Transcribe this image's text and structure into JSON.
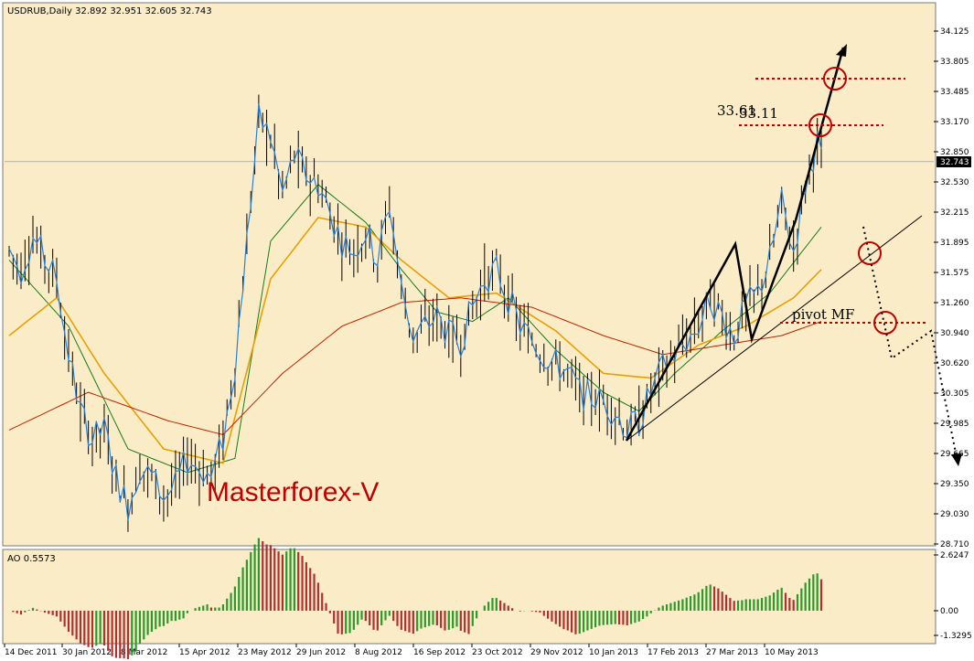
{
  "chart_data": [
    {
      "type": "candlestick",
      "symbol_header": "USDRUB,Daily  32.892 32.951 32.605 32.743",
      "current_price_label": "32.743",
      "current_price": 32.743,
      "ylim": [
        28.71,
        34.3
      ],
      "y_ticks": [
        "34.125",
        "33.805",
        "33.485",
        "33.170",
        "32.850",
        "32.530",
        "32.215",
        "31.895",
        "31.575",
        "31.260",
        "30.940",
        "30.620",
        "30.305",
        "29.985",
        "29.665",
        "29.350",
        "29.030",
        "28.710"
      ],
      "x_ticks": [
        "14 Dec 2011",
        "30 Jan 2012",
        "8 Mar 2012",
        "15 Apr 2012",
        "23 May 2012",
        "29 Jun 2012",
        "8 Aug 2012",
        "16 Sep 2012",
        "23 Oct 2012",
        "29 Nov 2012",
        "10 Jan 2013",
        "17 Feb 2013",
        "27 Mar 2013",
        "10 May 2013"
      ],
      "price_path": [
        [
          0,
          31.8
        ],
        [
          3,
          31.6
        ],
        [
          6,
          31.95
        ],
        [
          9,
          31.7
        ],
        [
          12,
          31.5
        ],
        [
          15,
          30.7
        ],
        [
          18,
          30.1
        ],
        [
          21,
          29.8
        ],
        [
          24,
          29.9
        ],
        [
          27,
          29.4
        ],
        [
          30,
          29.1
        ],
        [
          33,
          29.5
        ],
        [
          36,
          29.4
        ],
        [
          39,
          29.2
        ],
        [
          42,
          29.3
        ],
        [
          45,
          29.6
        ],
        [
          48,
          29.5
        ],
        [
          51,
          29.4
        ],
        [
          54,
          29.8
        ],
        [
          57,
          30.6
        ],
        [
          60,
          31.9
        ],
        [
          63,
          33.2
        ],
        [
          66,
          33.0
        ],
        [
          69,
          32.4
        ],
        [
          72,
          32.8
        ],
        [
          75,
          32.6
        ],
        [
          78,
          32.5
        ],
        [
          81,
          32.2
        ],
        [
          84,
          31.9
        ],
        [
          87,
          31.8
        ],
        [
          90,
          32.0
        ],
        [
          93,
          31.7
        ],
        [
          96,
          32.3
        ],
        [
          99,
          31.4
        ],
        [
          102,
          30.9
        ],
        [
          105,
          31.0
        ],
        [
          108,
          31.1
        ],
        [
          111,
          30.9
        ],
        [
          114,
          30.85
        ],
        [
          117,
          31.2
        ],
        [
          120,
          31.5
        ],
        [
          123,
          31.6
        ],
        [
          126,
          31.3
        ],
        [
          129,
          31.0
        ],
        [
          132,
          30.85
        ],
        [
          135,
          30.7
        ],
        [
          138,
          30.6
        ],
        [
          141,
          30.5
        ],
        [
          144,
          30.3
        ],
        [
          147,
          30.25
        ],
        [
          150,
          30.2
        ],
        [
          153,
          30.1
        ],
        [
          156,
          29.9
        ],
        [
          159,
          30.0
        ],
        [
          162,
          30.3
        ],
        [
          165,
          30.55
        ],
        [
          168,
          30.7
        ],
        [
          171,
          30.85
        ],
        [
          174,
          31.0
        ],
        [
          177,
          31.3
        ],
        [
          180,
          31.1
        ],
        [
          183,
          30.9
        ],
        [
          186,
          31.2
        ],
        [
          189,
          31.35
        ],
        [
          192,
          31.7
        ],
        [
          195,
          32.3
        ],
        [
          198,
          31.8
        ],
        [
          201,
          32.5
        ],
        [
          204,
          32.95
        ],
        [
          205,
          32.743
        ]
      ],
      "price_x_range": [
        0,
        205
      ],
      "moving_averages": [
        {
          "color": "#1a7a1a",
          "path": [
            [
              0,
              31.7
            ],
            [
              15,
              31.0
            ],
            [
              30,
              29.7
            ],
            [
              45,
              29.45
            ],
            [
              57,
              29.6
            ],
            [
              66,
              31.9
            ],
            [
              78,
              32.5
            ],
            [
              90,
              32.1
            ],
            [
              99,
              31.6
            ],
            [
              108,
              31.15
            ],
            [
              117,
              31.05
            ],
            [
              126,
              31.3
            ],
            [
              138,
              30.75
            ],
            [
              150,
              30.3
            ],
            [
              159,
              30.1
            ],
            [
              168,
              30.5
            ],
            [
              180,
              30.95
            ],
            [
              192,
              31.35
            ],
            [
              205,
              32.05
            ]
          ]
        },
        {
          "color": "#e8a000",
          "path": [
            [
              0,
              30.9
            ],
            [
              12,
              31.3
            ],
            [
              24,
              30.5
            ],
            [
              39,
              29.7
            ],
            [
              54,
              29.55
            ],
            [
              66,
              31.5
            ],
            [
              78,
              32.15
            ],
            [
              90,
              32.05
            ],
            [
              99,
              31.7
            ],
            [
              111,
              31.3
            ],
            [
              123,
              31.35
            ],
            [
              138,
              30.95
            ],
            [
              150,
              30.5
            ],
            [
              162,
              30.45
            ],
            [
              174,
              30.8
            ],
            [
              186,
              31.0
            ],
            [
              198,
              31.3
            ],
            [
              205,
              31.6
            ]
          ]
        },
        {
          "color": "#c02000",
          "path": [
            [
              0,
              29.9
            ],
            [
              20,
              30.3
            ],
            [
              40,
              30.0
            ],
            [
              54,
              29.85
            ],
            [
              69,
              30.5
            ],
            [
              84,
              31.0
            ],
            [
              99,
              31.25
            ],
            [
              114,
              31.3
            ],
            [
              132,
              31.2
            ],
            [
              150,
              30.9
            ],
            [
              165,
              30.7
            ],
            [
              180,
              30.8
            ],
            [
              195,
              30.9
            ],
            [
              205,
              31.05
            ]
          ]
        }
      ],
      "annotations": {
        "levels": [
          "33.61",
          "33.11"
        ],
        "pivot_label": "pivot MF",
        "watermark": "Masterforex-V"
      }
    },
    {
      "type": "bar",
      "indicator_label": "AO 0.5573",
      "y_ticks": [
        "2.6247",
        "0.00",
        "-1.3295"
      ],
      "ylim": [
        -1.6,
        2.7
      ],
      "colors": {
        "up": "#2a9a2a",
        "down": "#b03030"
      }
    }
  ]
}
